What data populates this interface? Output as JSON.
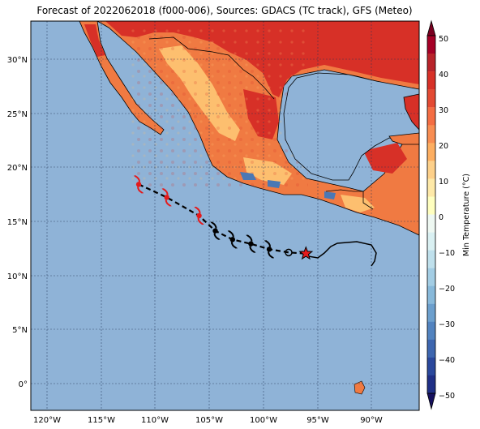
{
  "title": "Forecast of 2022062018 (f000-006), Sources: GDACS (TC track), GFS (Meteo)",
  "map": {
    "lon_ticks": [
      "120°W",
      "115°W",
      "110°W",
      "105°W",
      "100°W",
      "95°W",
      "90°W"
    ],
    "lat_ticks": [
      "30°N",
      "25°N",
      "20°N",
      "15°N",
      "10°N",
      "5°N",
      "0°"
    ],
    "extent": {
      "lon": [
        -122,
        -86
      ],
      "lat": [
        -2.5,
        33.5
      ]
    },
    "gridlines": true,
    "colors": {
      "ocean": "#8fb3d7",
      "land_warm": "#f07a42",
      "land_hot": "#d73027",
      "land_mild": "#fdbf6f",
      "land_cool": "#4a78b4",
      "track": "#000000",
      "storm_symbol_past": "#e41a1c",
      "storm_symbol_forecast": "#000000",
      "current_position_star": "#e41a1c"
    }
  },
  "track": {
    "points": [
      {
        "lon": -112.0,
        "lat": 18.4,
        "phase": "past"
      },
      {
        "lon": -109.4,
        "lat": 17.2,
        "phase": "past"
      },
      {
        "lon": -106.4,
        "lat": 15.5,
        "phase": "past"
      },
      {
        "lon": -104.9,
        "lat": 14.1,
        "phase": "forecast"
      },
      {
        "lon": -103.3,
        "lat": 13.3,
        "phase": "forecast"
      },
      {
        "lon": -101.6,
        "lat": 12.9,
        "phase": "forecast"
      },
      {
        "lon": -99.9,
        "lat": 12.4,
        "phase": "forecast"
      },
      {
        "lon": -98.1,
        "lat": 12.1,
        "phase": "low"
      },
      {
        "lon": -96.5,
        "lat": 12.0,
        "phase": "current"
      }
    ]
  },
  "colorbar": {
    "label": "Min Temperature (°C)",
    "ticks": [
      "50",
      "40",
      "30",
      "20",
      "10",
      "0",
      "−10",
      "−20",
      "−30",
      "−40",
      "−50"
    ],
    "segments": [
      "#67001f",
      "#b2182b",
      "#d6604d",
      "#f4a582",
      "#fddbc7",
      "#f7f7f7",
      "#d1e5f0",
      "#92c5de",
      "#4393c3",
      "#2166ac",
      "#053061"
    ],
    "bins": [
      {
        "from": 45,
        "to": 50,
        "color": "#a50026"
      },
      {
        "from": 40,
        "to": 45,
        "color": "#b8232a"
      },
      {
        "from": 35,
        "to": 40,
        "color": "#d73027"
      },
      {
        "from": 30,
        "to": 35,
        "color": "#e34a33"
      },
      {
        "from": 25,
        "to": 30,
        "color": "#f46d43"
      },
      {
        "from": 20,
        "to": 25,
        "color": "#f88d52"
      },
      {
        "from": 15,
        "to": 20,
        "color": "#fdae61"
      },
      {
        "from": 10,
        "to": 15,
        "color": "#fdd08a"
      },
      {
        "from": 5,
        "to": 10,
        "color": "#fee9a8"
      },
      {
        "from": 0,
        "to": 5,
        "color": "#ffffbf"
      },
      {
        "from": -5,
        "to": 0,
        "color": "#eef8f2"
      },
      {
        "from": -10,
        "to": -5,
        "color": "#d9f0f2"
      },
      {
        "from": -15,
        "to": -10,
        "color": "#bfe0ec"
      },
      {
        "from": -20,
        "to": -15,
        "color": "#a3cde4"
      },
      {
        "from": -25,
        "to": -20,
        "color": "#88b9da"
      },
      {
        "from": -30,
        "to": -25,
        "color": "#6c9fcd"
      },
      {
        "from": -35,
        "to": -30,
        "color": "#5283bf"
      },
      {
        "from": -40,
        "to": -35,
        "color": "#3d66af"
      },
      {
        "from": -45,
        "to": -40,
        "color": "#2a489c"
      },
      {
        "from": -50,
        "to": -45,
        "color": "#1f2f86"
      }
    ],
    "over_color": "#7a0020",
    "under_color": "#16105e"
  }
}
